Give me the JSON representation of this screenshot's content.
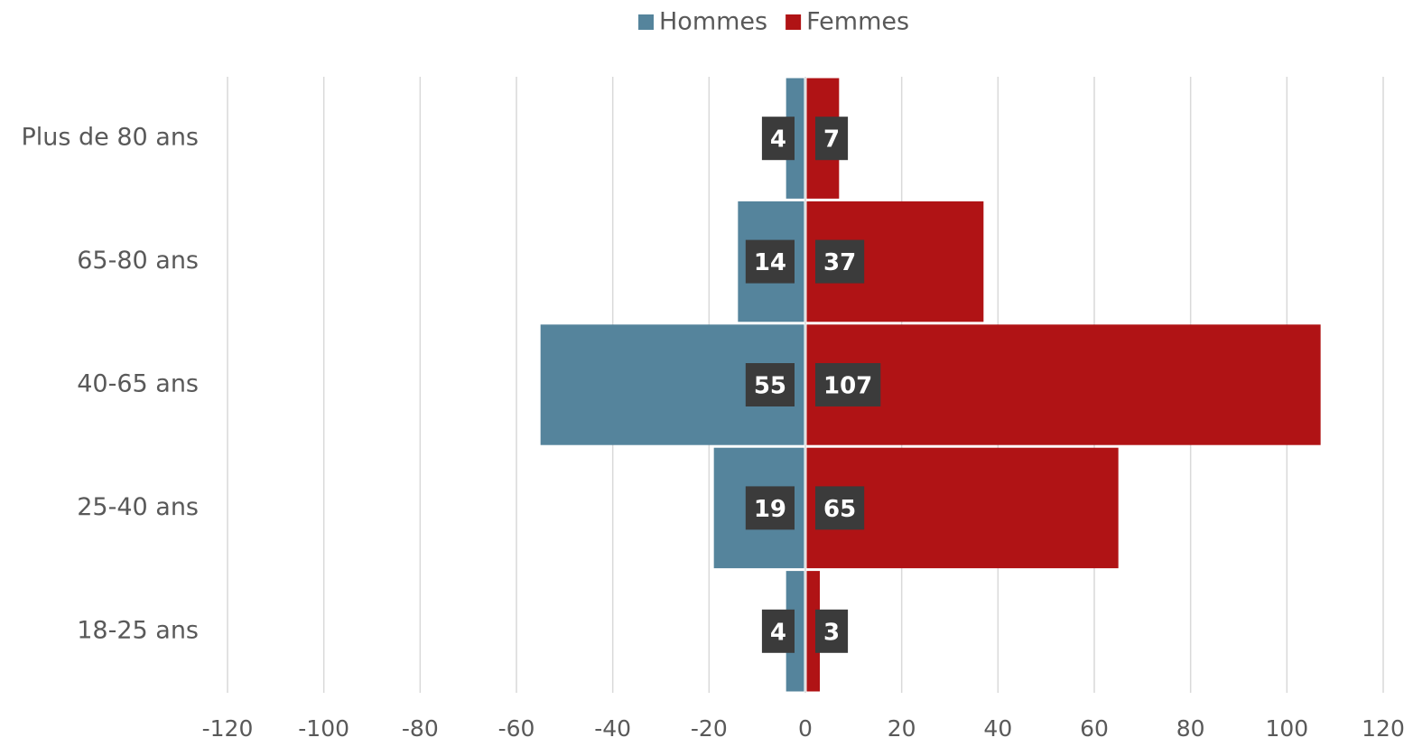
{
  "chart_data": {
    "type": "pyramid",
    "categories": [
      "Plus de 80 ans",
      "65-80 ans",
      "40-65 ans",
      "25-40 ans",
      "18-25 ans"
    ],
    "series": [
      {
        "name": "Hommes",
        "color": "#55849c",
        "values": [
          -4,
          -14,
          -55,
          -19,
          -4
        ],
        "value_labels": [
          "4",
          "14",
          "55",
          "19",
          "4"
        ]
      },
      {
        "name": "Femmes",
        "color": "#b01315",
        "values": [
          7,
          37,
          107,
          65,
          3
        ]
      }
    ],
    "xlim": [
      -120,
      120
    ],
    "xticks": [
      -120,
      -100,
      -80,
      -60,
      -40,
      -20,
      0,
      20,
      40,
      60,
      80,
      100,
      120
    ],
    "grid": true,
    "legend": "top"
  }
}
